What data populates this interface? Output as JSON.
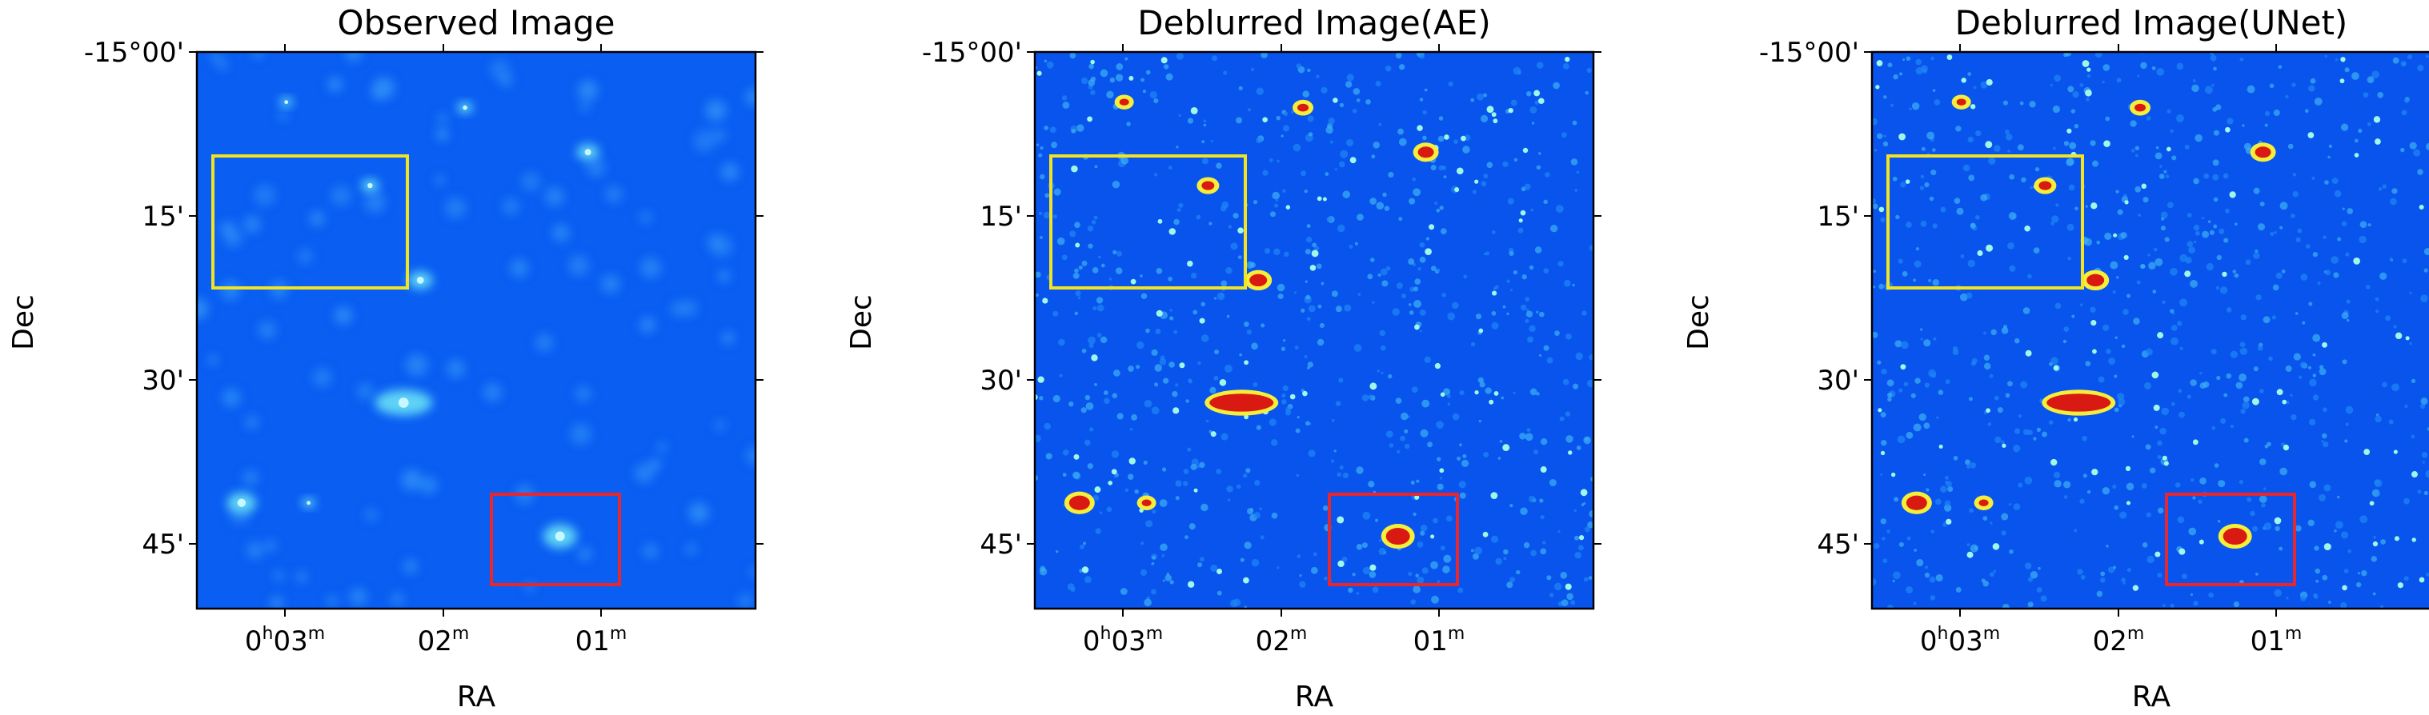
{
  "figure": {
    "panels": [
      {
        "title": "Observed Image",
        "xlabel": "RA",
        "ylabel": "Dec",
        "x_ticks": [
          {
            "h": "0",
            "m": "03"
          },
          {
            "h": "",
            "m": "02"
          },
          {
            "h": "",
            "m": "01"
          }
        ],
        "y_ticks": [
          "-15°00'",
          "15'",
          "30'",
          "45'"
        ],
        "style": "observed"
      },
      {
        "title": "Deblurred Image(AE)",
        "xlabel": "RA",
        "ylabel": "Dec",
        "x_ticks": [
          {
            "h": "0",
            "m": "03"
          },
          {
            "h": "",
            "m": "02"
          },
          {
            "h": "",
            "m": "01"
          }
        ],
        "y_ticks": [
          "-15°00'",
          "15'",
          "30'",
          "45'"
        ],
        "style": "deblurred"
      },
      {
        "title": "Deblurred Image(UNet)",
        "xlabel": "RA",
        "ylabel": "Dec",
        "x_ticks": [
          {
            "h": "0",
            "m": "03"
          },
          {
            "h": "",
            "m": "02"
          },
          {
            "h": "",
            "m": "01"
          }
        ],
        "y_ticks": [
          "-15°00'",
          "15'",
          "30'",
          "45'"
        ],
        "style": "deblurred"
      }
    ],
    "highlight_colors": {
      "yellow_box": "#f2e422",
      "red_box": "#e8262b"
    },
    "colormap": "jet"
  }
}
